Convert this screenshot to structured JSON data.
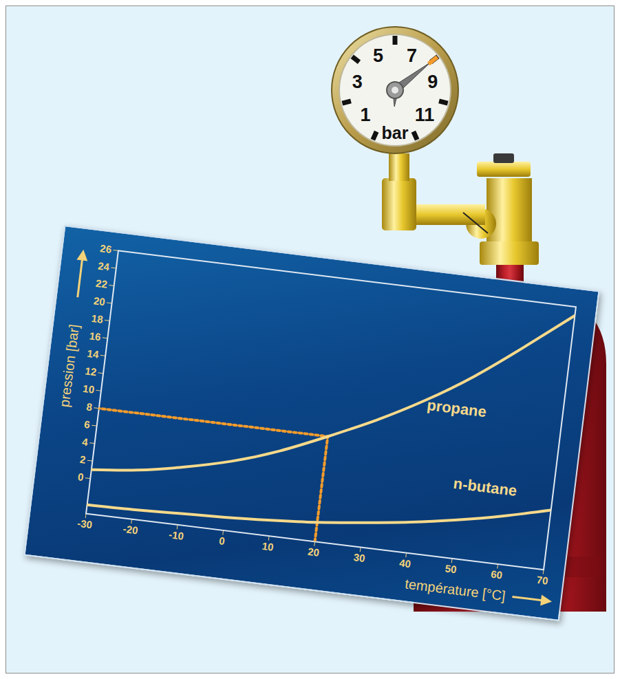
{
  "chart_data": {
    "type": "line",
    "x_label": "température [°C]",
    "y_label": "pression [bar]",
    "x": [
      -30,
      -20,
      -10,
      0,
      10,
      20,
      30,
      40,
      50,
      60,
      70
    ],
    "series": [
      {
        "name": "propane",
        "color": "#f5d98b",
        "values": [
          1.0,
          1.6,
          2.6,
          3.9,
          5.7,
          8,
          10.5,
          13.4,
          16.8,
          20.8,
          25
        ]
      },
      {
        "name": "n-butane",
        "color": "#f5d98b",
        "values": [
          -3.0,
          -2.9,
          -2.7,
          -2.5,
          -2.2,
          -1.8,
          -1.2,
          -0.5,
          0.4,
          1.5,
          2.8
        ]
      }
    ],
    "xlim": [
      -30,
      70
    ],
    "xticks": [
      -30,
      -20,
      -10,
      0,
      10,
      20,
      30,
      40,
      50,
      60,
      70
    ],
    "ylim": [
      -4,
      26
    ],
    "yticks": [
      0,
      2,
      4,
      6,
      8,
      10,
      12,
      14,
      16,
      18,
      20,
      22,
      24,
      26
    ],
    "grid": false,
    "annotations": [
      {
        "type": "reading",
        "x": 20,
        "y": 8,
        "color": "#f39c2c",
        "line_style": "dotted"
      }
    ]
  },
  "gauge": {
    "labels": [
      1,
      3,
      5,
      7,
      9,
      11
    ],
    "unit": "bar",
    "value": 8
  }
}
